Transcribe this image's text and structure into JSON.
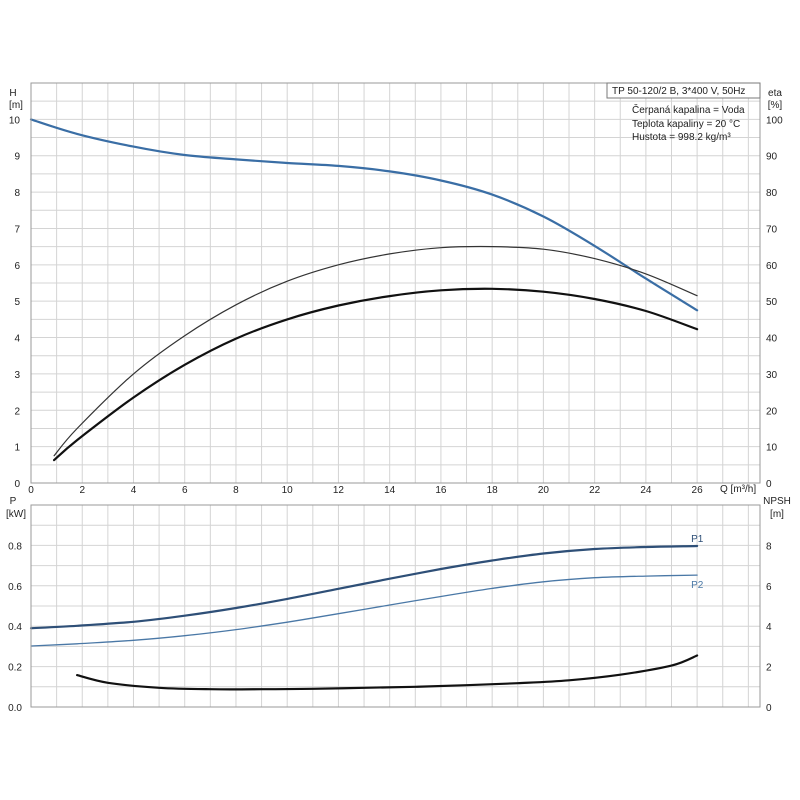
{
  "chart_data": [
    {
      "type": "line",
      "name": "upper-performance-chart",
      "info_box": [
        "TP 50-120/2 B, 3*400 V, 50Hz",
        "Čerpaná kapalina = Voda",
        "Teplota kapaliny = 20 °C",
        "Hustota = 998.2 kg/m³"
      ],
      "xlabel": "Q [m³/h]",
      "xlim": [
        0,
        28
      ],
      "xticks": [
        0,
        2,
        4,
        6,
        8,
        10,
        12,
        14,
        16,
        18,
        20,
        22,
        24,
        26
      ],
      "ylabel_left": [
        "H",
        "[m]"
      ],
      "ylim_left": [
        0,
        11
      ],
      "yticks_left": [
        0,
        1,
        2,
        3,
        4,
        5,
        6,
        7,
        8,
        9,
        10
      ],
      "ylabel_right": [
        "eta",
        "[%]"
      ],
      "ylim_right": [
        0,
        110
      ],
      "yticks_right": [
        0,
        10,
        20,
        30,
        40,
        50,
        60,
        70,
        80,
        90,
        100
      ],
      "grid": true,
      "series": [
        {
          "axis": "left",
          "color": "#3a6ea5",
          "width": 2.2,
          "x": [
            0,
            1.8,
            4,
            6,
            8,
            10,
            12,
            14,
            16,
            18,
            20,
            22,
            24,
            26
          ],
          "values": [
            10.0,
            9.6,
            9.25,
            9.02,
            8.9,
            8.8,
            8.72,
            8.57,
            8.32,
            7.93,
            7.33,
            6.52,
            5.62,
            4.75
          ]
        },
        {
          "axis": "right",
          "color": "#333333",
          "width": 1.2,
          "x": [
            0.9,
            1.8,
            4,
            6,
            8,
            10,
            12,
            14,
            16,
            18,
            20,
            22,
            24,
            26
          ],
          "values": [
            7.5,
            15,
            30,
            40.5,
            49,
            55.5,
            60,
            63,
            64.7,
            65,
            64.3,
            61.7,
            57.5,
            51.5
          ]
        },
        {
          "axis": "right",
          "color": "#111111",
          "width": 2.2,
          "x": [
            0.9,
            1.8,
            4,
            6,
            8,
            10,
            12,
            14,
            16,
            18,
            20,
            22,
            24,
            26
          ],
          "values": [
            6.3,
            11.8,
            23.5,
            32.5,
            39.7,
            45,
            48.8,
            51.4,
            53,
            53.4,
            52.6,
            50.6,
            47.3,
            42.3
          ]
        }
      ]
    },
    {
      "type": "line",
      "name": "lower-power-npsh-chart",
      "xlim": [
        0,
        28
      ],
      "ylabel_left": [
        "P",
        "[kW]"
      ],
      "ylim_left": [
        0,
        1.0
      ],
      "yticks_left": [
        0.0,
        0.2,
        0.4,
        0.6,
        0.8
      ],
      "ylabel_right": [
        "NPSH",
        "[m]"
      ],
      "ylim_right": [
        0,
        10
      ],
      "yticks_right": [
        0,
        2,
        4,
        6,
        8
      ],
      "grid": true,
      "series": [
        {
          "name": "P1",
          "axis": "left",
          "color": "#2e4f77",
          "width": 2.2,
          "x": [
            0,
            1.8,
            4,
            6,
            8,
            10,
            12,
            14,
            16,
            18,
            20,
            22,
            24,
            26
          ],
          "values": [
            0.39,
            0.402,
            0.422,
            0.452,
            0.49,
            0.535,
            0.585,
            0.635,
            0.683,
            0.725,
            0.76,
            0.782,
            0.792,
            0.797
          ]
        },
        {
          "name": "P2",
          "axis": "left",
          "color": "#4a78a6",
          "width": 1.3,
          "x": [
            0,
            1.8,
            4,
            6,
            8,
            10,
            12,
            14,
            16,
            18,
            20,
            22,
            24,
            26
          ],
          "values": [
            0.302,
            0.313,
            0.33,
            0.353,
            0.383,
            0.42,
            0.462,
            0.505,
            0.547,
            0.587,
            0.62,
            0.64,
            0.648,
            0.653
          ]
        },
        {
          "axis": "right",
          "color": "#111111",
          "width": 2.2,
          "x": [
            1.8,
            3,
            5,
            7,
            9,
            11,
            13,
            15,
            17,
            19,
            21,
            23,
            25,
            26
          ],
          "values": [
            1.58,
            1.2,
            0.95,
            0.88,
            0.88,
            0.9,
            0.95,
            1.0,
            1.08,
            1.18,
            1.32,
            1.6,
            2.05,
            2.55
          ]
        }
      ]
    }
  ]
}
